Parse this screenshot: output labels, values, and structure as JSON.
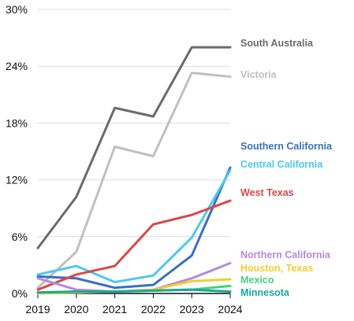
{
  "chart_data": {
    "type": "line",
    "title": "",
    "xlabel": "",
    "ylabel": "",
    "x": [
      "2019",
      "2020",
      "2021",
      "2022",
      "2023",
      "2024"
    ],
    "ylim": [
      0,
      30
    ],
    "y_ticks": [
      0,
      6,
      12,
      18,
      24,
      30
    ],
    "y_tick_labels": [
      "0%",
      "6%",
      "12%",
      "18%",
      "24%",
      "30%"
    ],
    "grid": "horizontal",
    "legend": "direct labels at right of lines",
    "series": [
      {
        "name": "South Australia",
        "color": "#6b6b6b",
        "values": [
          4.8,
          10.2,
          19.6,
          18.7,
          26.0,
          26.0
        ]
      },
      {
        "name": "Victoria",
        "color": "#c0c0c0",
        "values": [
          0.6,
          4.4,
          15.5,
          14.5,
          23.3,
          22.9
        ]
      },
      {
        "name": "Southern California",
        "color": "#3a6fc4",
        "values": [
          1.8,
          1.6,
          0.6,
          0.9,
          4.0,
          13.3
        ]
      },
      {
        "name": "Central California",
        "color": "#4fc8f0",
        "values": [
          2.0,
          2.9,
          1.2,
          1.9,
          5.9,
          13.0
        ]
      },
      {
        "name": "West Texas",
        "color": "#d94848",
        "values": [
          0.4,
          2.0,
          2.9,
          7.3,
          8.3,
          9.8
        ]
      },
      {
        "name": "Northern California",
        "color": "#b48ae0",
        "values": [
          1.6,
          0.4,
          0.2,
          0.4,
          1.6,
          3.2
        ]
      },
      {
        "name": "Houston, Texas",
        "color": "#f5cc2e",
        "values": [
          0.0,
          0.1,
          0.2,
          0.4,
          1.3,
          1.5
        ]
      },
      {
        "name": "Mexico",
        "color": "#46d07a",
        "values": [
          0.1,
          0.2,
          0.2,
          0.3,
          0.4,
          0.8
        ]
      },
      {
        "name": "Minnesota",
        "color": "#1aa89a",
        "values": [
          0.1,
          0.2,
          0.2,
          0.3,
          0.4,
          0.2
        ]
      }
    ]
  }
}
